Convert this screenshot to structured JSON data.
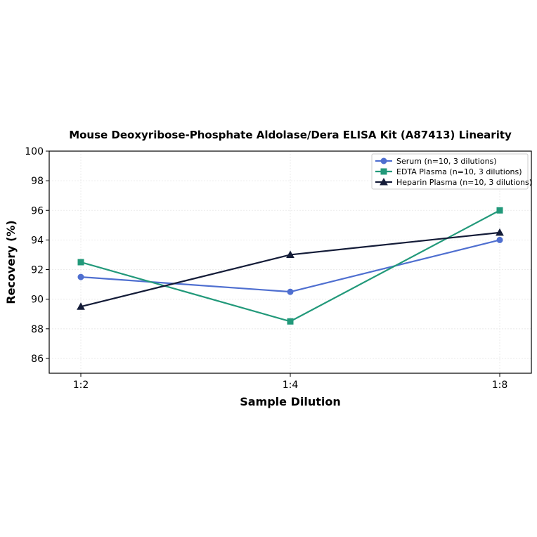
{
  "chart_data": {
    "type": "line",
    "title": "Mouse Deoxyribose-Phosphate Aldolase/Dera ELISA Kit (A87413) Linearity",
    "xlabel": "Sample Dilution",
    "ylabel": "Recovery (%)",
    "categories": [
      "1:2",
      "1:4",
      "1:8"
    ],
    "ylim": [
      85,
      100
    ],
    "yticks": [
      86,
      88,
      90,
      92,
      94,
      96,
      98,
      100
    ],
    "grid": true,
    "legend_position": "top-right",
    "series": [
      {
        "name": "Serum (n=10, 3 dilutions)",
        "values": [
          91.5,
          90.5,
          94.0
        ],
        "color": "#4f6fd0",
        "marker": "circle"
      },
      {
        "name": "EDTA Plasma (n=10, 3 dilutions)",
        "values": [
          92.5,
          88.5,
          96.0
        ],
        "color": "#22997a",
        "marker": "square"
      },
      {
        "name": "Heparin Plasma (n=10, 3 dilutions)",
        "values": [
          89.5,
          93.0,
          94.5
        ],
        "color": "#141c38",
        "marker": "triangle"
      }
    ]
  }
}
